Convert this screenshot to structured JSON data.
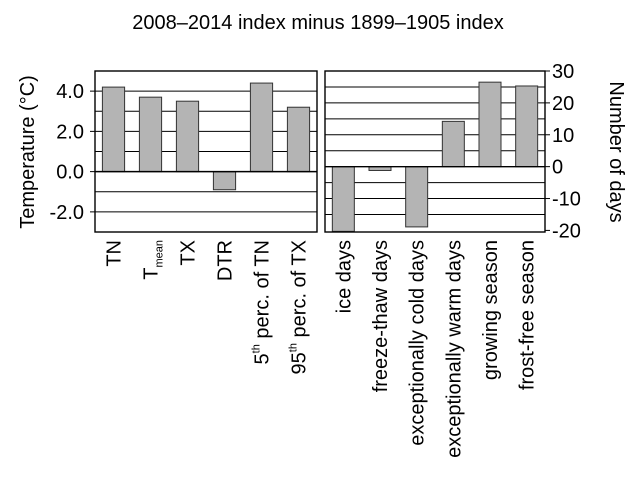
{
  "chart_data": {
    "title": "2008–2014 index minus 1899–1905 index",
    "bar_color": "#b4b4b4",
    "panels": [
      {
        "type": "bar",
        "ylabel": "Temperature (°C)",
        "ylim": [
          -3.0,
          5.0
        ],
        "yticks": [
          "4.0",
          "2.0",
          "0.0",
          "-2.0"
        ],
        "ytick_values": [
          4,
          2,
          0,
          -2
        ],
        "grid_values": [
          5,
          4,
          3,
          2,
          1,
          -1,
          -2
        ],
        "categories": [
          {
            "main": "TN",
            "sup": "",
            "tail": ""
          },
          {
            "main": "T",
            "sub": "mean",
            "tail": ""
          },
          {
            "main": "TX",
            "sup": "",
            "tail": ""
          },
          {
            "main": "DTR",
            "sup": "",
            "tail": ""
          },
          {
            "main": "5",
            "sup": "th",
            "tail": " perc. of TN"
          },
          {
            "main": "95",
            "sup": "th",
            "tail": " perc. of TX"
          }
        ],
        "values": [
          4.2,
          3.7,
          3.5,
          -0.9,
          4.4,
          3.2
        ]
      },
      {
        "type": "bar",
        "ylabel": "Number of days",
        "ylim": [
          -20.5,
          30
        ],
        "yticks": [
          "30",
          "20",
          "10",
          "0",
          "-10",
          "-20"
        ],
        "ytick_values": [
          30,
          20,
          10,
          0,
          -10,
          -20
        ],
        "grid_values": [
          25,
          20,
          15,
          10,
          5,
          -5,
          -10,
          -15
        ],
        "categories": [
          {
            "main": "ice days"
          },
          {
            "main": "freeze-thaw days"
          },
          {
            "main": "exceptionally cold days"
          },
          {
            "main": "exceptionally warm days"
          },
          {
            "main": "growing season"
          },
          {
            "main": "frost-free season"
          }
        ],
        "values": [
          -20.3,
          -1.2,
          -18.9,
          14.2,
          26.5,
          25.3
        ]
      }
    ]
  }
}
